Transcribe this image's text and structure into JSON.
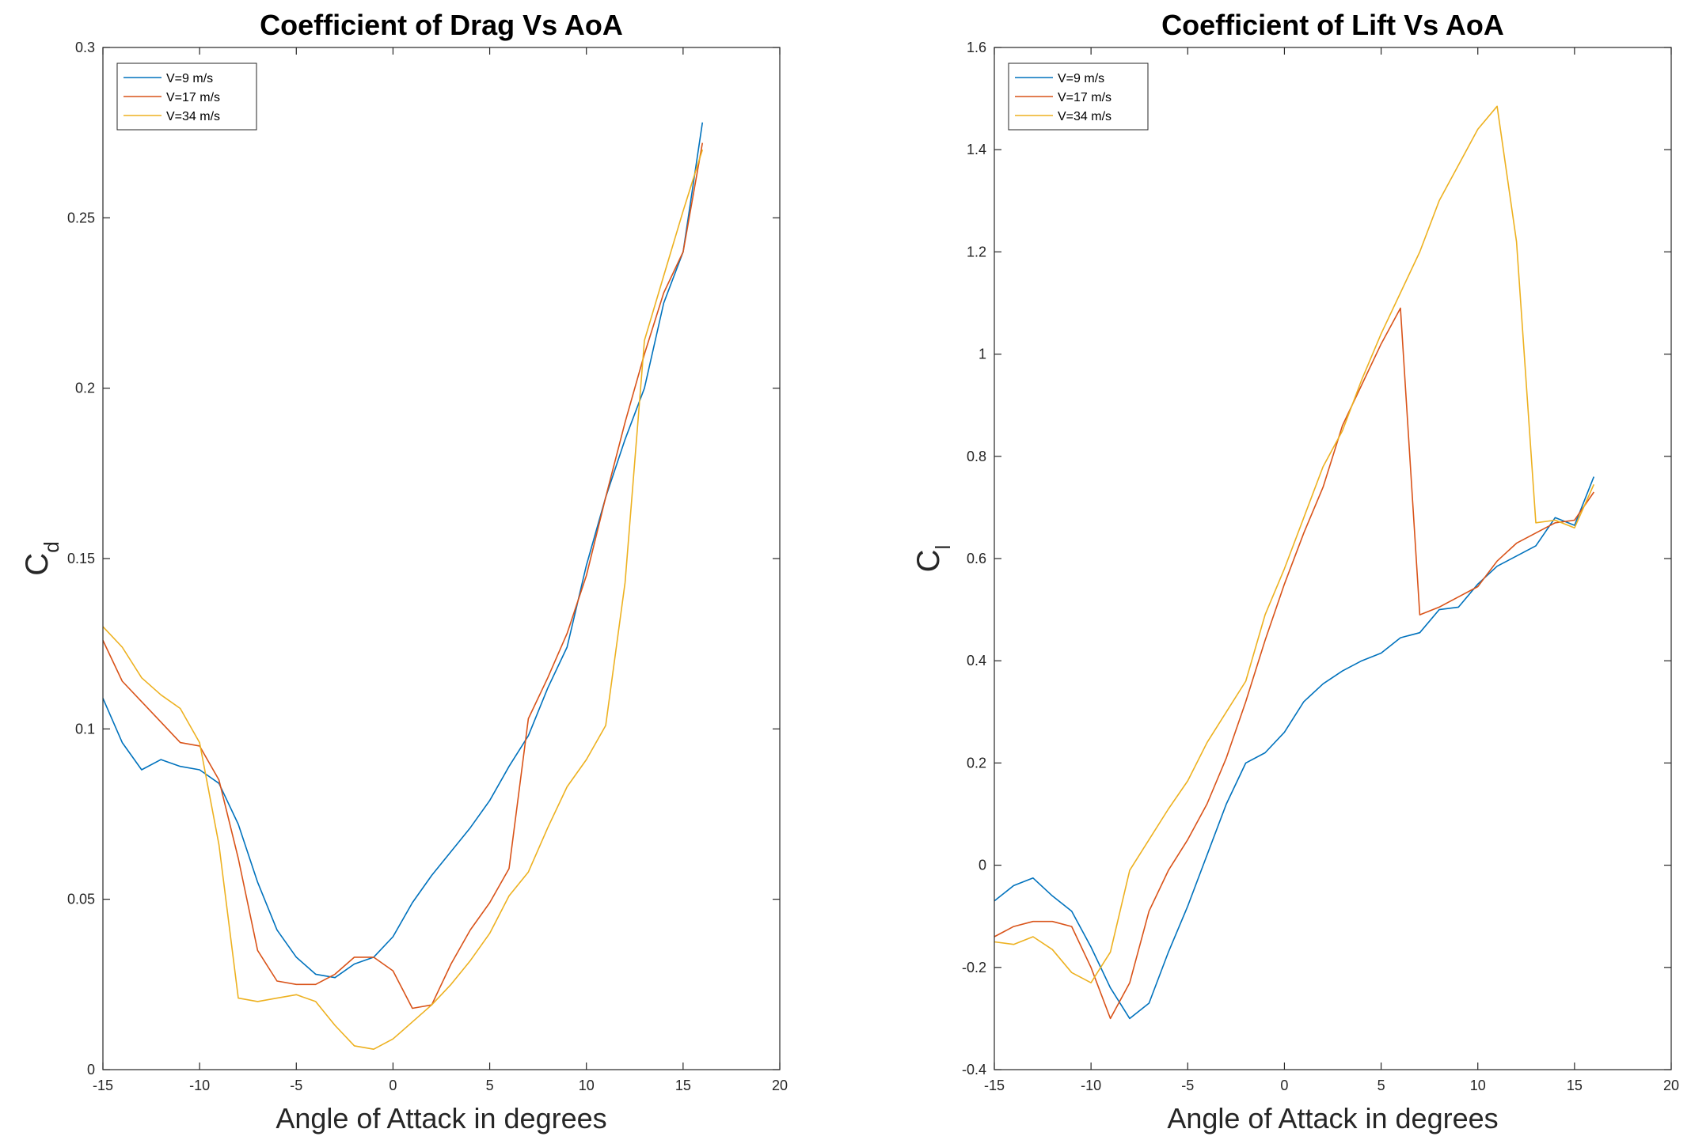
{
  "chart_data": [
    {
      "type": "line",
      "title": "Coefficient of Drag Vs AoA",
      "xlabel": "Angle of Attack in degrees",
      "ylabel_main": "C",
      "ylabel_sub": "d",
      "xlim": [
        -15,
        20
      ],
      "ylim": [
        0,
        0.3
      ],
      "xticks": [
        -15,
        -10,
        -5,
        0,
        5,
        10,
        15,
        20
      ],
      "yticks": [
        0,
        0.05,
        0.1,
        0.15,
        0.2,
        0.25,
        0.3
      ],
      "ytick_labels": [
        "0",
        "0.05",
        "0.1",
        "0.15",
        "0.2",
        "0.25",
        "0.3"
      ],
      "legend_position": "top-left",
      "grid": false,
      "x": [
        -15,
        -14,
        -13,
        -12,
        -11,
        -10,
        -9,
        -8,
        -7,
        -6,
        -5,
        -4,
        -3,
        -2,
        -1,
        0,
        1,
        2,
        3,
        4,
        5,
        6,
        7,
        8,
        9,
        10,
        11,
        12,
        13,
        14,
        15,
        16
      ],
      "series": [
        {
          "name": "V=9 m/s",
          "color": "#0072BD",
          "values": [
            0.109,
            0.096,
            0.088,
            0.091,
            0.089,
            0.088,
            0.084,
            0.072,
            0.055,
            0.041,
            0.033,
            0.028,
            0.027,
            0.031,
            0.033,
            0.039,
            0.049,
            0.057,
            0.064,
            0.071,
            0.079,
            0.089,
            0.098,
            0.112,
            0.124,
            0.148,
            0.168,
            0.185,
            0.2,
            0.225,
            0.24,
            0.278
          ]
        },
        {
          "name": "V=17 m/s",
          "color": "#D95319",
          "values": [
            0.126,
            0.114,
            0.108,
            0.102,
            0.096,
            0.095,
            0.085,
            0.062,
            0.035,
            0.026,
            0.025,
            0.025,
            0.028,
            0.033,
            0.033,
            0.029,
            0.018,
            0.019,
            0.031,
            0.041,
            0.049,
            0.059,
            0.103,
            0.115,
            0.128,
            0.145,
            0.168,
            0.19,
            0.21,
            0.228,
            0.24,
            0.272
          ]
        },
        {
          "name": "V=34 m/s",
          "color": "#EDB120",
          "values": [
            0.13,
            0.124,
            0.115,
            0.11,
            0.106,
            0.096,
            0.066,
            0.021,
            0.02,
            0.021,
            0.022,
            0.02,
            0.013,
            0.007,
            0.006,
            0.009,
            0.014,
            0.019,
            0.025,
            0.032,
            0.04,
            0.051,
            0.058,
            0.071,
            0.083,
            0.091,
            0.101,
            0.143,
            0.214,
            0.233,
            0.252,
            0.27
          ]
        }
      ]
    },
    {
      "type": "line",
      "title": "Coefficient of Lift Vs AoA",
      "xlabel": "Angle of Attack in degrees",
      "ylabel_main": "C",
      "ylabel_sub": "l",
      "xlim": [
        -15,
        20
      ],
      "ylim": [
        -0.4,
        1.6
      ],
      "xticks": [
        -15,
        -10,
        -5,
        0,
        5,
        10,
        15,
        20
      ],
      "yticks": [
        -0.4,
        -0.2,
        0,
        0.2,
        0.4,
        0.6,
        0.8,
        1,
        1.2,
        1.4,
        1.6
      ],
      "ytick_labels": [
        "-0.4",
        "-0.2",
        "0",
        "0.2",
        "0.4",
        "0.6",
        "0.8",
        "1",
        "1.2",
        "1.4",
        "1.6"
      ],
      "legend_position": "top-left",
      "grid": false,
      "x": [
        -15,
        -14,
        -13,
        -12,
        -11,
        -10,
        -9,
        -8,
        -7,
        -6,
        -5,
        -4,
        -3,
        -2,
        -1,
        0,
        1,
        2,
        3,
        4,
        5,
        6,
        7,
        8,
        9,
        10,
        11,
        12,
        13,
        14,
        15,
        16
      ],
      "series": [
        {
          "name": "V=9 m/s",
          "color": "#0072BD",
          "values": [
            -0.07,
            -0.04,
            -0.025,
            -0.06,
            -0.09,
            -0.16,
            -0.24,
            -0.3,
            -0.27,
            -0.17,
            -0.08,
            0.02,
            0.12,
            0.2,
            0.22,
            0.26,
            0.32,
            0.355,
            0.38,
            0.4,
            0.415,
            0.445,
            0.455,
            0.5,
            0.505,
            0.55,
            0.585,
            0.605,
            0.625,
            0.68,
            0.665,
            0.76
          ]
        },
        {
          "name": "V=17 m/s",
          "color": "#D95319",
          "values": [
            -0.14,
            -0.12,
            -0.11,
            -0.11,
            -0.12,
            -0.2,
            -0.3,
            -0.23,
            -0.09,
            -0.01,
            0.05,
            0.12,
            0.21,
            0.32,
            0.44,
            0.55,
            0.65,
            0.74,
            0.86,
            0.94,
            1.02,
            1.09,
            0.49,
            0.505,
            0.525,
            0.545,
            0.595,
            0.63,
            0.65,
            0.67,
            0.675,
            0.73
          ]
        },
        {
          "name": "V=34 m/s",
          "color": "#EDB120",
          "values": [
            -0.15,
            -0.155,
            -0.14,
            -0.165,
            -0.21,
            -0.23,
            -0.17,
            -0.01,
            0.05,
            0.11,
            0.165,
            0.24,
            0.3,
            0.36,
            0.49,
            0.58,
            0.68,
            0.78,
            0.85,
            0.95,
            1.04,
            1.12,
            1.2,
            1.3,
            1.37,
            1.44,
            1.485,
            1.22,
            0.67,
            0.675,
            0.66,
            0.745
          ]
        }
      ]
    }
  ]
}
